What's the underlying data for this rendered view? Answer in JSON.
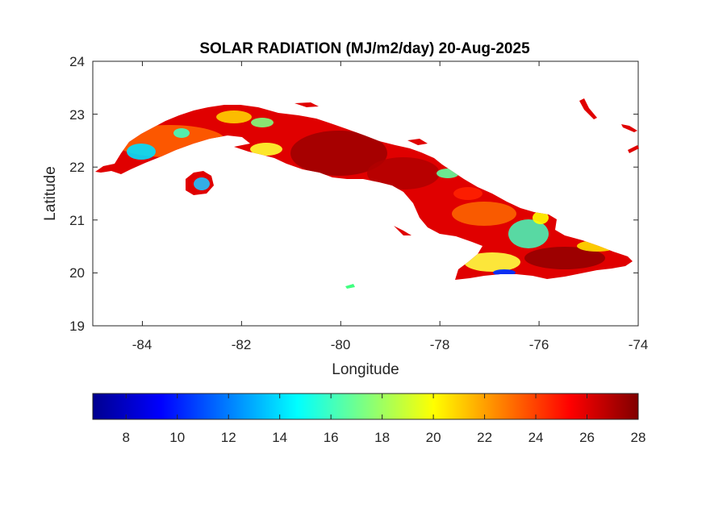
{
  "title": "SOLAR RADIATION (MJ/m2/day) 20-Aug-2025",
  "map": {
    "xlabel": "Longitude",
    "ylabel": "Latitude",
    "xlim": [
      -85,
      -74
    ],
    "ylim": [
      19,
      24
    ],
    "x_ticks": [
      -84,
      -82,
      -80,
      -78,
      -76,
      -74
    ],
    "y_ticks": [
      19,
      20,
      21,
      22,
      23,
      24
    ],
    "x_tick_labels": [
      "-84",
      "-82",
      "-80",
      "-78",
      "-76",
      "-74"
    ],
    "y_tick_labels": [
      "19",
      "20",
      "21",
      "22",
      "23",
      "24"
    ],
    "region": "Cuba",
    "colormap": "jet"
  },
  "colorbar": {
    "orientation": "horizontal",
    "range": [
      6.7,
      28
    ],
    "ticks": [
      8,
      10,
      12,
      14,
      16,
      18,
      20,
      22,
      24,
      26,
      28
    ],
    "tick_labels": [
      "8",
      "10",
      "12",
      "14",
      "16",
      "18",
      "20",
      "22",
      "24",
      "26",
      "28"
    ],
    "colors": [
      "#00008f",
      "#0000ff",
      "#0080ff",
      "#00ffff",
      "#80ff80",
      "#ffff00",
      "#ff8000",
      "#ff0000",
      "#800000"
    ]
  }
}
